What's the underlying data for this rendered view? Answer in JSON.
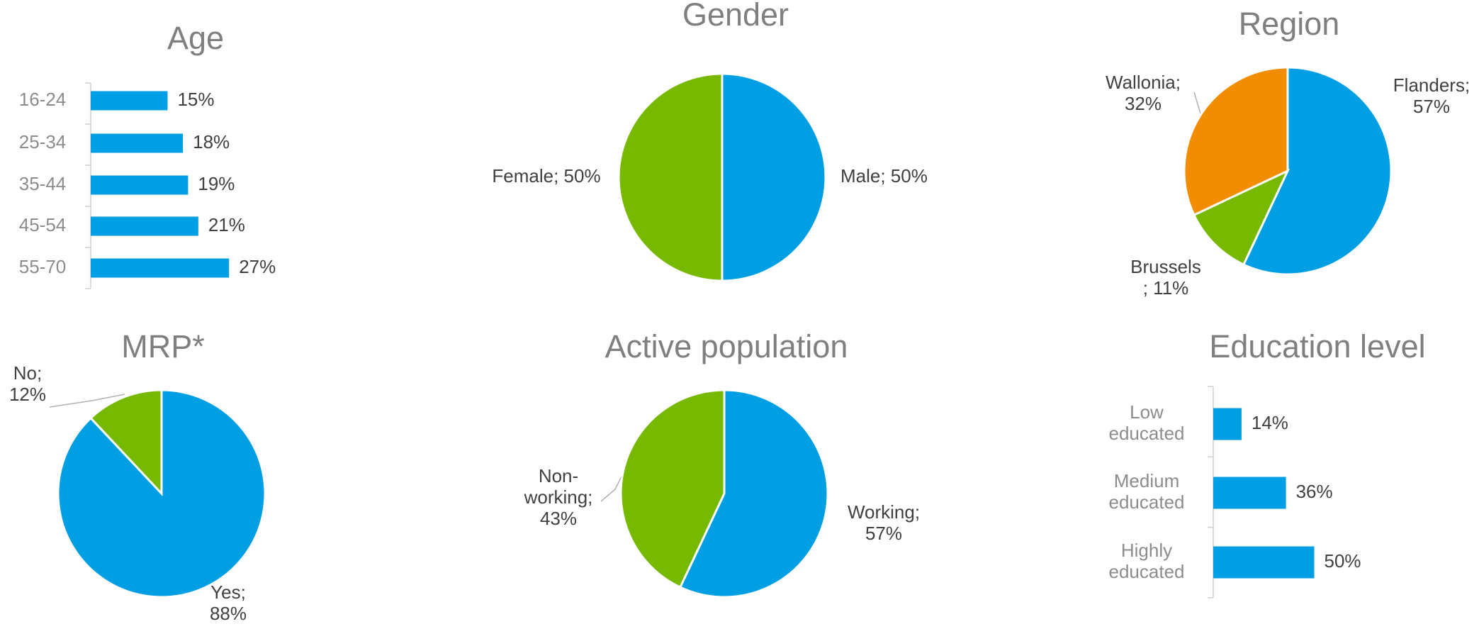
{
  "chart_data": [
    {
      "type": "barh",
      "title": "Age",
      "categories": [
        "16-24",
        "25-34",
        "35-44",
        "45-54",
        "55-70"
      ],
      "values": [
        15,
        18,
        19,
        21,
        27
      ],
      "value_labels": [
        "15%",
        "18%",
        "19%",
        "21%",
        "27%"
      ],
      "color": "#009fe3"
    },
    {
      "type": "pie",
      "title": "Gender",
      "values": [
        50,
        50
      ],
      "value_labels": [
        "Male; 50%",
        "Female; 50%"
      ],
      "colors": [
        "#009fe3",
        "#76b900"
      ]
    },
    {
      "type": "pie",
      "title": "Region",
      "values": [
        57,
        11,
        32
      ],
      "value_labels": [
        "Flanders;\n57%",
        "Brussels\n; 11%",
        "Wallonia;\n32%"
      ],
      "colors": [
        "#009fe3",
        "#76b900",
        "#f28c00"
      ]
    },
    {
      "type": "pie",
      "title": "MRP*",
      "values": [
        88,
        12
      ],
      "value_labels": [
        "Yes;\n88%",
        "No;\n12%"
      ],
      "colors": [
        "#009fe3",
        "#76b900"
      ]
    },
    {
      "type": "pie",
      "title": "Active population",
      "values": [
        57,
        43
      ],
      "value_labels": [
        "Working;\n57%",
        "Non-\nworking;\n43%"
      ],
      "colors": [
        "#009fe3",
        "#76b900"
      ]
    },
    {
      "type": "barh",
      "title": "Education level",
      "categories": [
        "Low\neducated",
        "Medium\neducated",
        "Highly\neducated"
      ],
      "values": [
        14,
        36,
        50
      ],
      "value_labels": [
        "14%",
        "36%",
        "50%"
      ],
      "color": "#009fe3"
    }
  ]
}
